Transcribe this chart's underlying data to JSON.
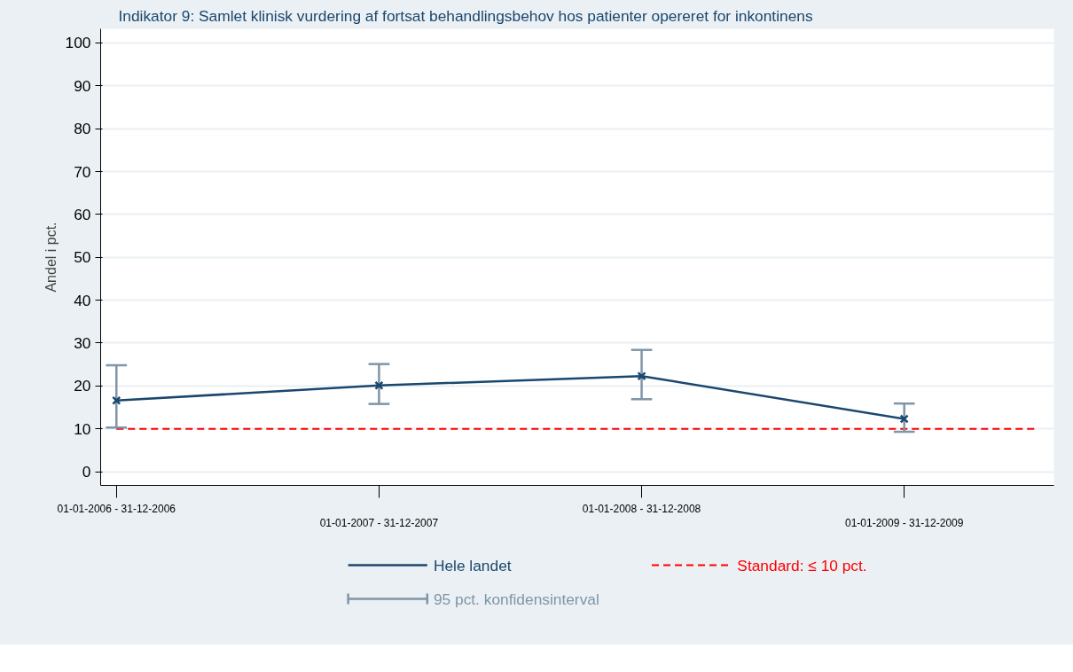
{
  "chart_data": {
    "type": "line",
    "title": "Indikator 9: Samlet klinisk vurdering af fortsat behandlingsbehov hos patienter opereret for inkontinens",
    "ylabel": "Andel i pct.",
    "categories": [
      "01-01-2006 - 31-12-2006",
      "01-01-2007 - 31-12-2007",
      "01-01-2008 - 31-12-2008",
      "01-01-2009 - 31-12-2009"
    ],
    "series": [
      {
        "name": "Hele landet",
        "color": "#1a476f",
        "values": [
          16.6,
          20.1,
          22.3,
          12.3
        ],
        "errors": [
          [
            10.3,
            24.8
          ],
          [
            15.8,
            25.1
          ],
          [
            16.9,
            28.4
          ],
          [
            9.3,
            15.9
          ]
        ]
      }
    ],
    "annotations": [
      "95 pct. konfidensinterval"
    ],
    "ref_lines": [
      {
        "axis": "y",
        "value": 10,
        "label": "Standard: ≤ 10 pct.",
        "color": "#ff0000",
        "line_style": "dashed"
      }
    ],
    "ylim": [
      -3.2,
      103.3
    ],
    "yticks": [
      0,
      10,
      20,
      30,
      40,
      50,
      60,
      70,
      80,
      90,
      100
    ],
    "grid": "y",
    "legend": "bottom",
    "marker": "cross",
    "line_style": "solid"
  }
}
